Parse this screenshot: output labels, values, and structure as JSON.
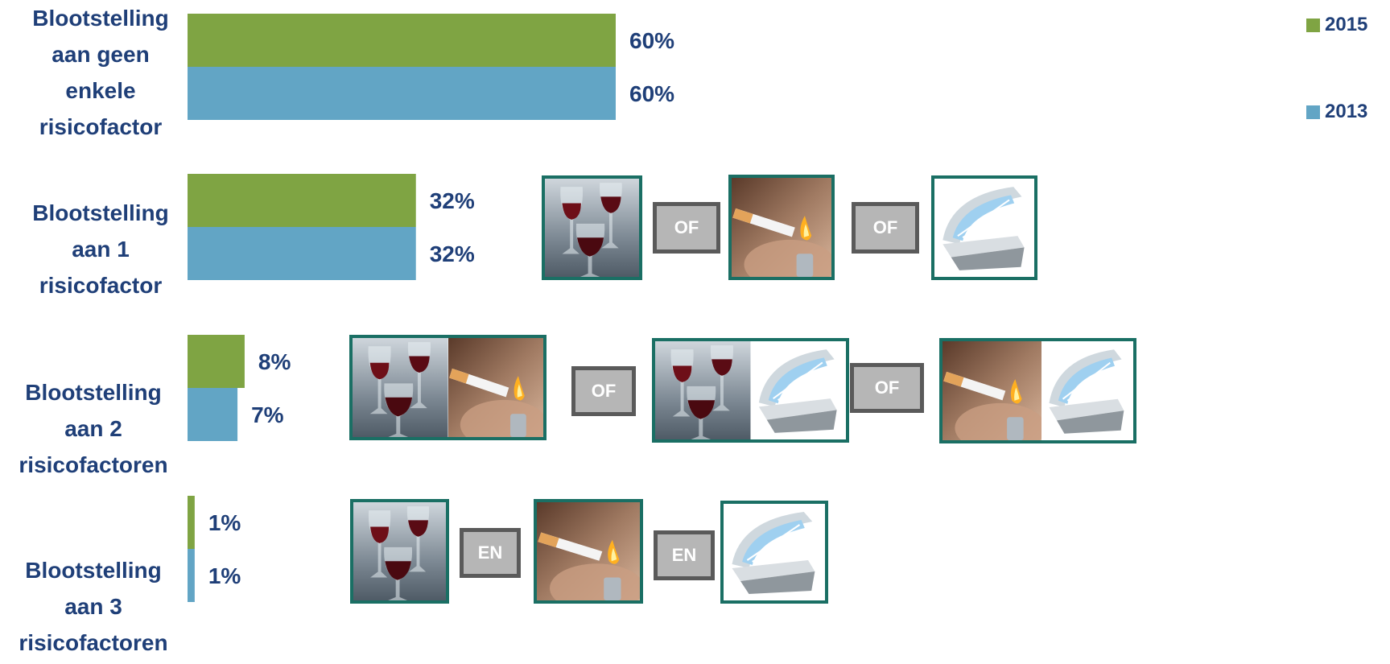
{
  "chart_data": {
    "type": "bar",
    "orientation": "horizontal",
    "categories": [
      "Blootstelling aan geen enkele risicofactor",
      "Blootstelling aan 1 risicofactor",
      "Blootstelling aan 2 risicofactoren",
      "Blootstelling aan 3 risicofactoren"
    ],
    "series": [
      {
        "name": "2015",
        "color": "#7fa443",
        "values": [
          60,
          32,
          8,
          1
        ],
        "labels": [
          "60%",
          "32%",
          "8%",
          "1%"
        ]
      },
      {
        "name": "2013",
        "color": "#62a5c5",
        "values": [
          60,
          32,
          7,
          1
        ],
        "labels": [
          "60%",
          "32%",
          "7%",
          "1%"
        ]
      }
    ],
    "xlim": [
      0,
      100
    ],
    "grid": false,
    "legend_position": "top-right"
  },
  "category_labels": [
    "Blootstelling\naan geen\nenkele\nrisicofactor",
    "Blootstelling\naan 1\nrisicofactor",
    "Blootstelling\naan 2\nrisicofactoren",
    "Blootstelling\naan 3\nrisicofactoren"
  ],
  "connectors": {
    "or_label": "OF",
    "and_label": "EN"
  },
  "icons": {
    "wine": "wine-glasses-icon",
    "cigarette": "cigarette-icon",
    "sunbed": "sunbed-icon"
  },
  "colors": {
    "label_text": "#1f3f78",
    "image_border": "#1a6f64",
    "connector_fill": "#b6b6b6",
    "connector_border": "#5a5a5a"
  }
}
